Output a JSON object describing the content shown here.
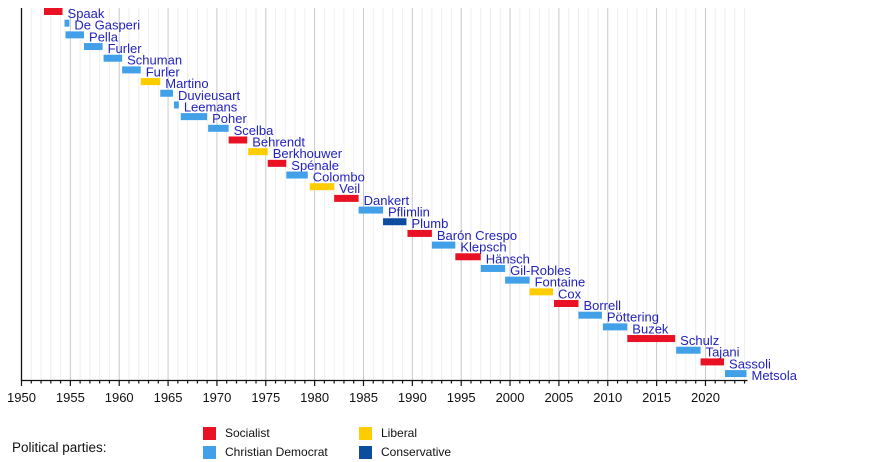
{
  "chart_data": {
    "type": "bar",
    "title": "",
    "xlabel": "",
    "ylabel": "",
    "axis": {
      "x_min": 1950,
      "x_max": 2024.3,
      "major_tick_step": 5,
      "minor_tick_step": 1,
      "tick_labels": [
        "1950",
        "1955",
        "1960",
        "1965",
        "1970",
        "1975",
        "1980",
        "1985",
        "1990",
        "1995",
        "2000",
        "2005",
        "2010",
        "2015",
        "2020"
      ]
    },
    "grid": {
      "minor_color": "#eeeeee",
      "major_color": "#c9c9c9"
    },
    "axis_color": "#111111",
    "label_color": "#2323bb",
    "party_colors": {
      "Socialist": "#e81224",
      "Christian Democrat": "#42a0e8",
      "Liberal": "#fdcd00",
      "Conservative": "#0d4d9e"
    },
    "series": [
      {
        "name": "Spaak",
        "party": "Socialist",
        "start": 1952.3,
        "end": 1954.2
      },
      {
        "name": "De Gasperi",
        "party": "Christian Democrat",
        "start": 1954.4,
        "end": 1954.9
      },
      {
        "name": "Pella",
        "party": "Christian Democrat",
        "start": 1954.5,
        "end": 1956.4
      },
      {
        "name": "Furler",
        "party": "Christian Democrat",
        "start": 1956.4,
        "end": 1958.3
      },
      {
        "name": "Schuman",
        "party": "Christian Democrat",
        "start": 1958.4,
        "end": 1960.3
      },
      {
        "name": "Furler",
        "party": "Christian Democrat",
        "start": 1960.3,
        "end": 1962.2
      },
      {
        "name": "Martino",
        "party": "Liberal",
        "start": 1962.2,
        "end": 1964.2
      },
      {
        "name": "Duvieusart",
        "party": "Christian Democrat",
        "start": 1964.2,
        "end": 1965.5
      },
      {
        "name": "Leemans",
        "party": "Christian Democrat",
        "start": 1965.6,
        "end": 1966.1
      },
      {
        "name": "Poher",
        "party": "Christian Democrat",
        "start": 1966.3,
        "end": 1969.0
      },
      {
        "name": "Scelba",
        "party": "Christian Democrat",
        "start": 1969.1,
        "end": 1971.2
      },
      {
        "name": "Behrendt",
        "party": "Socialist",
        "start": 1971.2,
        "end": 1973.1
      },
      {
        "name": "Berkhouwer",
        "party": "Liberal",
        "start": 1973.2,
        "end": 1975.2
      },
      {
        "name": "Spénale",
        "party": "Socialist",
        "start": 1975.2,
        "end": 1977.1
      },
      {
        "name": "Colombo",
        "party": "Christian Democrat",
        "start": 1977.1,
        "end": 1979.3
      },
      {
        "name": "Veil",
        "party": "Liberal",
        "start": 1979.5,
        "end": 1982.0
      },
      {
        "name": "Dankert",
        "party": "Socialist",
        "start": 1982.0,
        "end": 1984.5
      },
      {
        "name": "Pflimlin",
        "party": "Christian Democrat",
        "start": 1984.5,
        "end": 1987.0
      },
      {
        "name": "Plumb",
        "party": "Conservative",
        "start": 1987.0,
        "end": 1989.4
      },
      {
        "name": "Barón Crespo",
        "party": "Socialist",
        "start": 1989.5,
        "end": 1992.0
      },
      {
        "name": "Klepsch",
        "party": "Christian Democrat",
        "start": 1992.0,
        "end": 1994.4
      },
      {
        "name": "Hänsch",
        "party": "Socialist",
        "start": 1994.4,
        "end": 1997.0
      },
      {
        "name": "Gil-Robles",
        "party": "Christian Democrat",
        "start": 1997.0,
        "end": 1999.5
      },
      {
        "name": "Fontaine",
        "party": "Christian Democrat",
        "start": 1999.5,
        "end": 2002.0
      },
      {
        "name": "Cox",
        "party": "Liberal",
        "start": 2002.0,
        "end": 2004.4
      },
      {
        "name": "Borrell",
        "party": "Socialist",
        "start": 2004.5,
        "end": 2007.0
      },
      {
        "name": "Pöttering",
        "party": "Christian Democrat",
        "start": 2007.0,
        "end": 2009.4
      },
      {
        "name": "Buzek",
        "party": "Christian Democrat",
        "start": 2009.5,
        "end": 2012.0
      },
      {
        "name": "Schulz",
        "party": "Socialist",
        "start": 2012.0,
        "end": 2016.9
      },
      {
        "name": "Tajani",
        "party": "Christian Democrat",
        "start": 2017.0,
        "end": 2019.5
      },
      {
        "name": "Sassoli",
        "party": "Socialist",
        "start": 2019.5,
        "end": 2021.9
      },
      {
        "name": "Metsola",
        "party": "Christian Democrat",
        "start": 2022.0,
        "end": 2024.2
      }
    ]
  },
  "legend": {
    "label": "Political parties:",
    "items": [
      {
        "label": "Socialist",
        "color": "#e81224"
      },
      {
        "label": "Christian Democrat",
        "color": "#42a0e8"
      },
      {
        "label": "Liberal",
        "color": "#fdcd00"
      },
      {
        "label": "Conservative",
        "color": "#0d4d9e"
      }
    ]
  }
}
